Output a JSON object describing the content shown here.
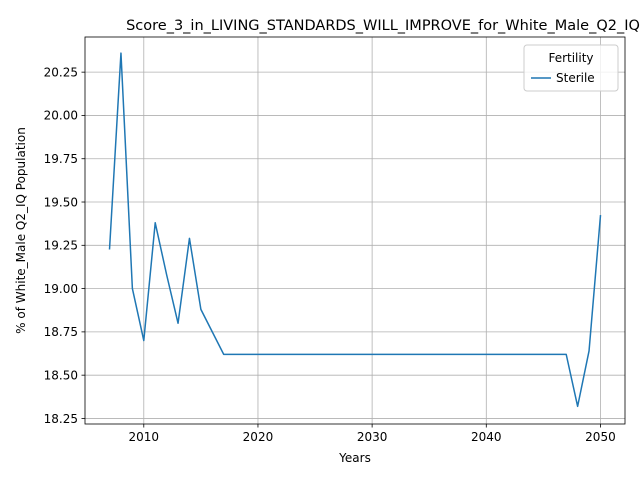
{
  "chart_data": {
    "type": "line",
    "title": "Score_3_in_LIVING_STANDARDS_WILL_IMPROVE_for_White_Male_Q2_IQ",
    "xlabel": "Years",
    "ylabel": "% of White_Male Q2_IQ Population",
    "xlim": [
      2004.85,
      2052.15
    ],
    "ylim": [
      18.218,
      20.453
    ],
    "x_ticks": [
      2010,
      2020,
      2030,
      2040,
      2050
    ],
    "y_ticks": [
      18.25,
      18.5,
      18.75,
      19.0,
      19.25,
      19.5,
      19.75,
      20.0,
      20.25
    ],
    "y_tick_labels": [
      "18.25",
      "18.50",
      "18.75",
      "19.00",
      "19.25",
      "19.50",
      "19.75",
      "20.00",
      "20.25"
    ],
    "grid": true,
    "legend": {
      "title": "Fertility",
      "position": "top-right"
    },
    "series": [
      {
        "name": "Sterile",
        "color": "#1f77b4",
        "x": [
          2007,
          2008,
          2009,
          2010,
          2011,
          2012,
          2013,
          2014,
          2015,
          2016,
          2017,
          2018,
          2019,
          2020,
          2021,
          2022,
          2023,
          2024,
          2025,
          2026,
          2027,
          2028,
          2029,
          2030,
          2031,
          2032,
          2033,
          2034,
          2035,
          2036,
          2037,
          2038,
          2039,
          2040,
          2041,
          2042,
          2043,
          2044,
          2045,
          2046,
          2047,
          2048,
          2049,
          2050
        ],
        "values": [
          19.23,
          20.36,
          19.0,
          18.7,
          19.38,
          19.08,
          18.8,
          19.29,
          18.88,
          18.75,
          18.62,
          18.62,
          18.62,
          18.62,
          18.62,
          18.62,
          18.62,
          18.62,
          18.62,
          18.62,
          18.62,
          18.62,
          18.62,
          18.62,
          18.62,
          18.62,
          18.62,
          18.62,
          18.62,
          18.62,
          18.62,
          18.62,
          18.62,
          18.62,
          18.62,
          18.62,
          18.62,
          18.62,
          18.62,
          18.62,
          18.62,
          18.32,
          18.64,
          19.42
        ]
      }
    ]
  }
}
